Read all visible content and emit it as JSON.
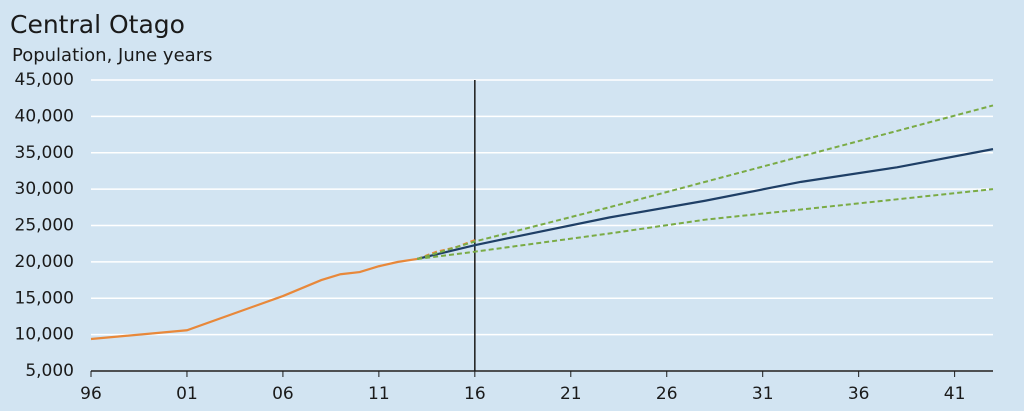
{
  "chart_data": {
    "type": "line",
    "title": "Central Otago",
    "subtitle": "Population, June years",
    "xlim": [
      1996,
      2043
    ],
    "ylim": [
      5000,
      45000
    ],
    "xticks": [
      {
        "value": 1996,
        "label": "96"
      },
      {
        "value": 2001,
        "label": "01"
      },
      {
        "value": 2006,
        "label": "06"
      },
      {
        "value": 2011,
        "label": "11"
      },
      {
        "value": 2016,
        "label": "16"
      },
      {
        "value": 2021,
        "label": "21"
      },
      {
        "value": 2026,
        "label": "26"
      },
      {
        "value": 2031,
        "label": "31"
      },
      {
        "value": 2036,
        "label": "36"
      },
      {
        "value": 2041,
        "label": "41"
      }
    ],
    "yticks": [
      {
        "value": 5000,
        "label": "5,000"
      },
      {
        "value": 10000,
        "label": "10,000"
      },
      {
        "value": 15000,
        "label": "15,000"
      },
      {
        "value": 20000,
        "label": "20,000"
      },
      {
        "value": 25000,
        "label": "25,000"
      },
      {
        "value": 30000,
        "label": "30,000"
      },
      {
        "value": 35000,
        "label": "35,000"
      },
      {
        "value": 40000,
        "label": "40,000"
      },
      {
        "value": 45000,
        "label": "45,000"
      }
    ],
    "grid": true,
    "divider_x": 2016,
    "series": [
      {
        "color": "#e8883a",
        "dashed": false,
        "x": [
          1996,
          2001,
          2006,
          2008,
          2009,
          2010,
          2011,
          2012,
          2013
        ],
        "values": [
          9400,
          10600,
          15300,
          17500,
          18300,
          18600,
          19400,
          20000,
          20400
        ]
      },
      {
        "color": "#e8883a",
        "dashed": true,
        "x": [
          2013,
          2014,
          2015,
          2016
        ],
        "values": [
          20400,
          21400,
          22000,
          23000
        ]
      },
      {
        "color": "#1f3f66",
        "dashed": false,
        "x": [
          2013,
          2016,
          2018,
          2023,
          2028,
          2033,
          2038,
          2043
        ],
        "values": [
          20400,
          22300,
          23400,
          26100,
          28400,
          31000,
          33000,
          35500
        ]
      },
      {
        "color": "#7aab45",
        "dashed": true,
        "x": [
          2013,
          2016,
          2023,
          2028,
          2033,
          2038,
          2043
        ],
        "values": [
          20400,
          22800,
          27500,
          31000,
          34500,
          38000,
          41500
        ]
      },
      {
        "color": "#7aab45",
        "dashed": true,
        "x": [
          2013,
          2016,
          2023,
          2028,
          2033,
          2038,
          2043
        ],
        "values": [
          20400,
          21400,
          23900,
          25800,
          27200,
          28600,
          30000
        ]
      }
    ]
  }
}
